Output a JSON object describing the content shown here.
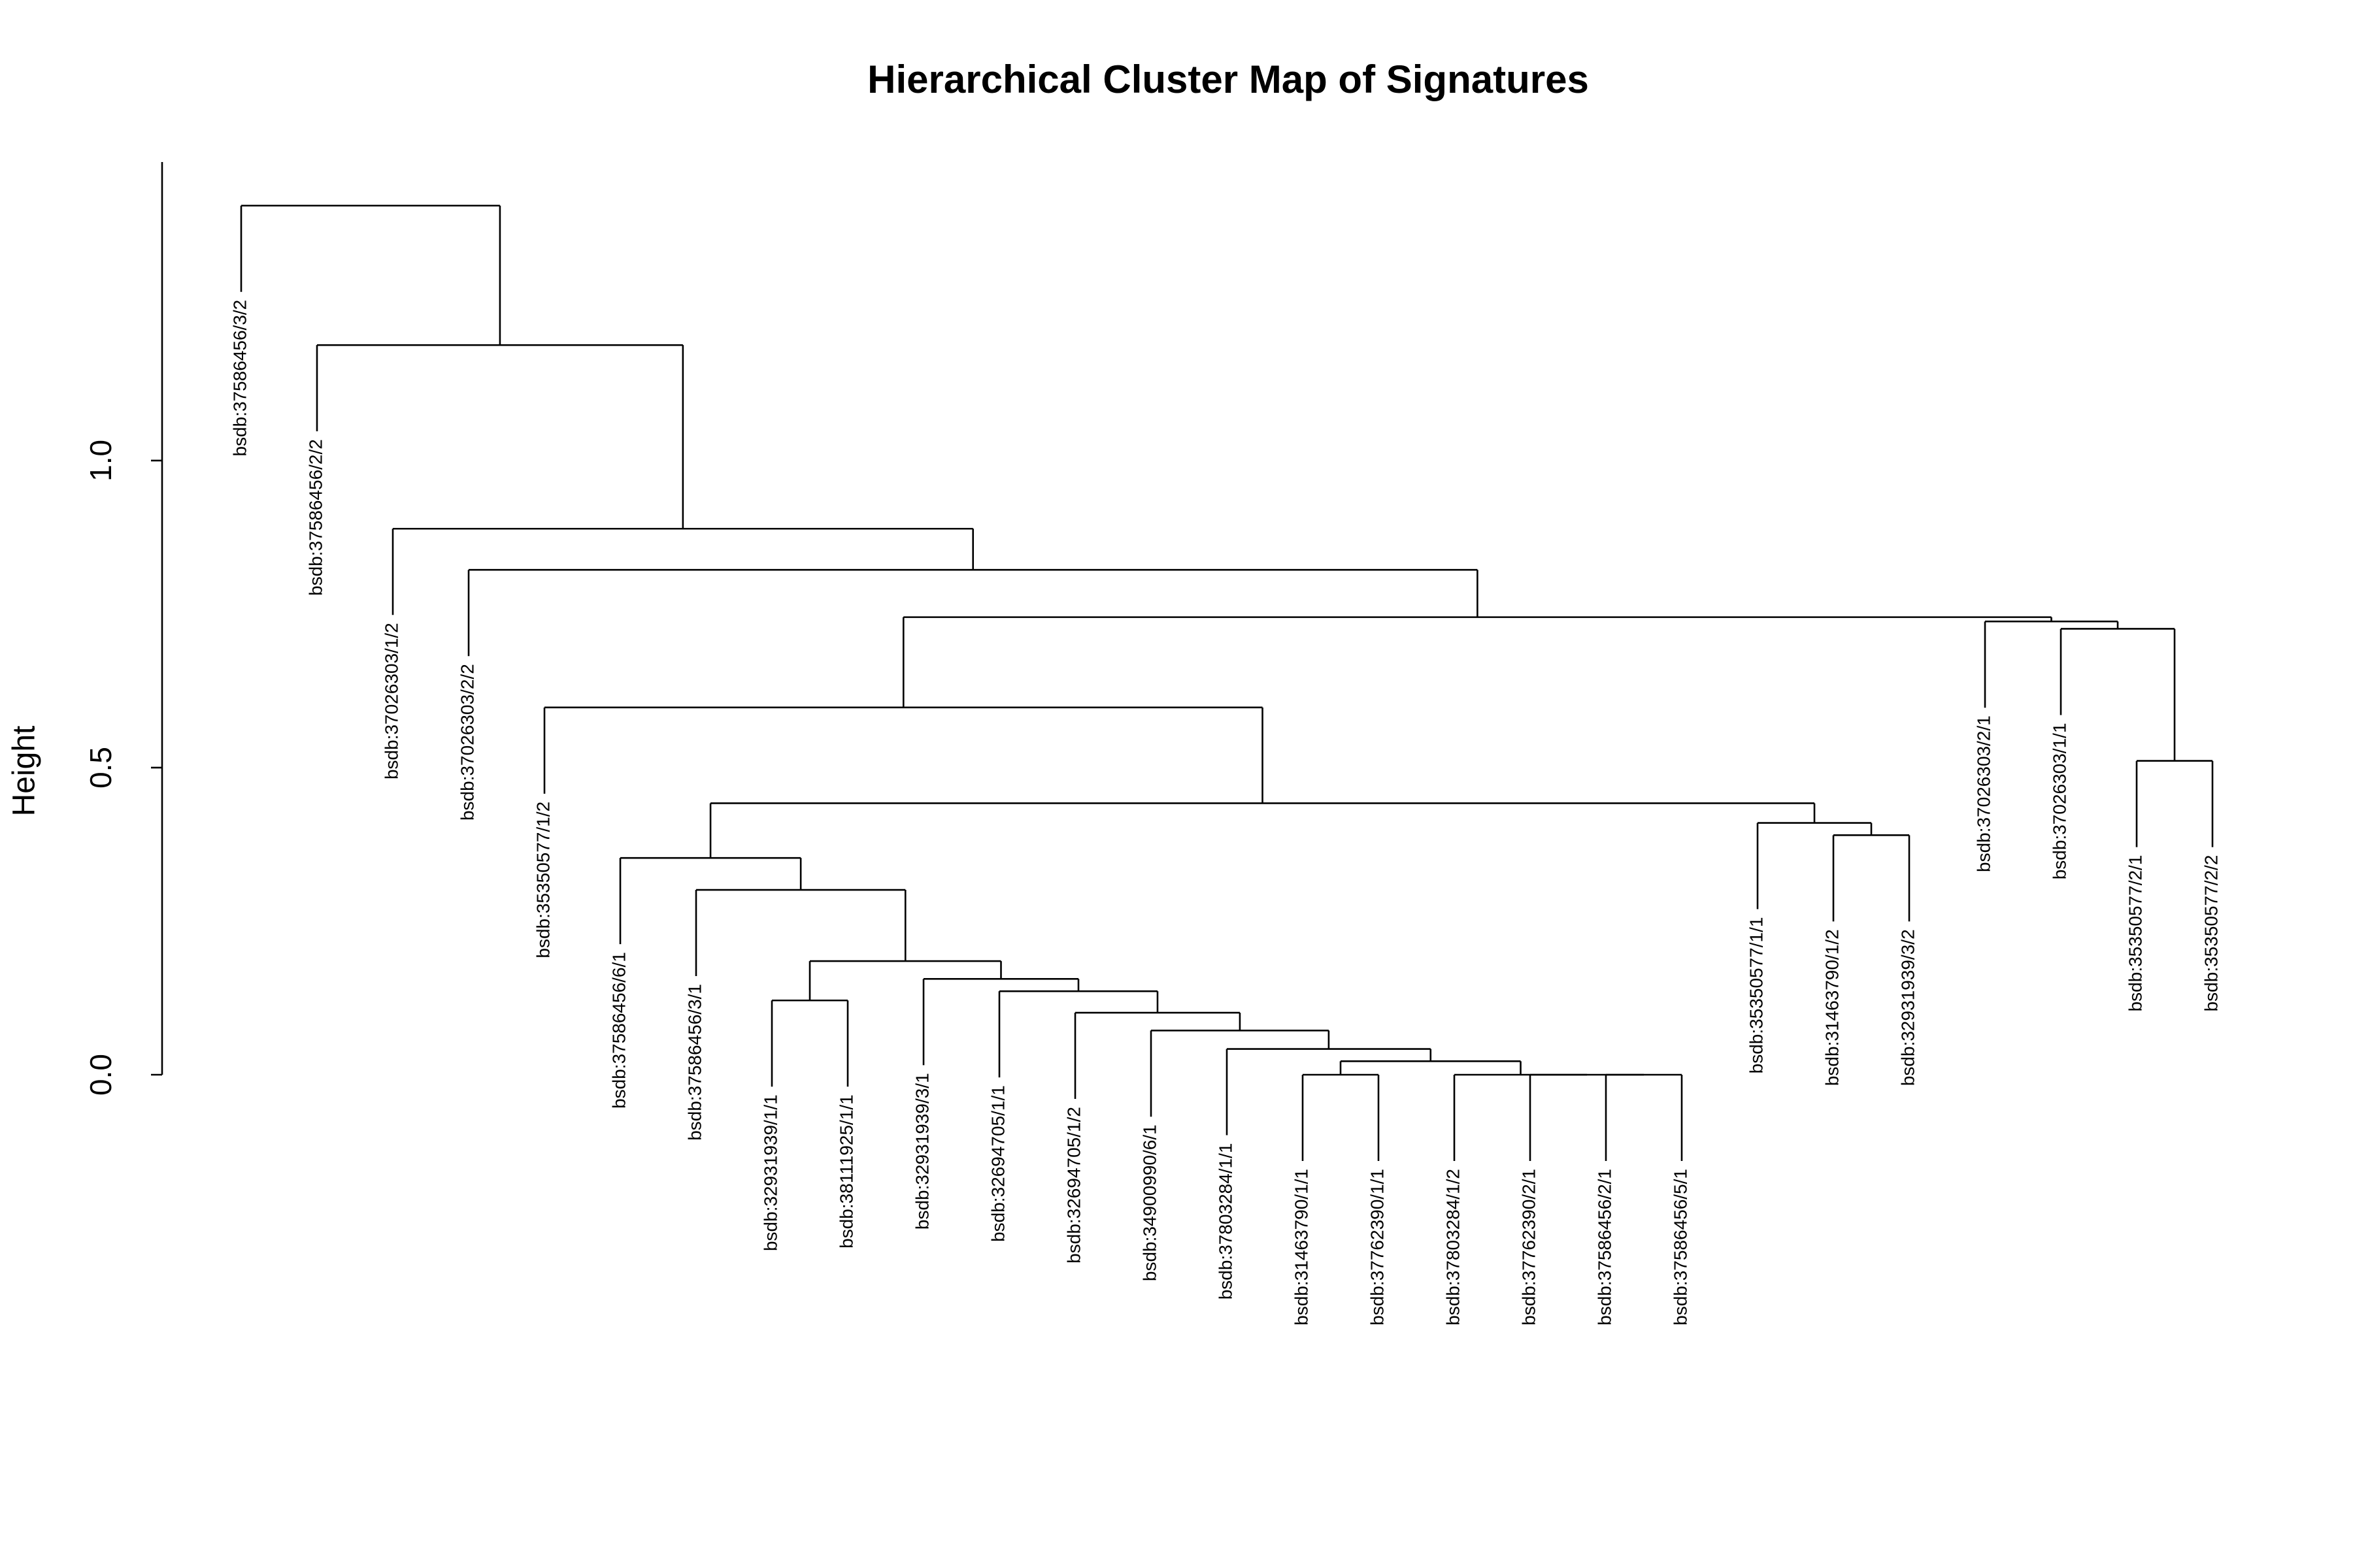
{
  "chart_data": {
    "type": "dendrogram",
    "title": "Hierarchical Cluster Map of Signatures",
    "ylabel": "Height",
    "ylim": [
      0,
      1.486
    ],
    "yticks": [
      {
        "value": 0,
        "label": "0.0"
      },
      0.5,
      {
        "value": 1,
        "label": "1.0"
      }
    ],
    "color": "#000000",
    "tree": {
      "height": 1.415,
      "children": [
        {
          "label": "bsdb:37586456/3/2"
        },
        {
          "height": 1.188,
          "children": [
            {
              "label": "bsdb:37586456/2/2"
            },
            {
              "height": 0.889,
              "children": [
                {
                  "label": "bsdb:37026303/1/2"
                },
                {
                  "height": 0.822,
                  "children": [
                    {
                      "label": "bsdb:37026303/2/2"
                    },
                    {
                      "height": 0.745,
                      "children": [
                        {
                          "height": 0.598,
                          "children": [
                            {
                              "label": "bsdb:35350577/1/2"
                            },
                            {
                              "height": 0.442,
                              "children": [
                                {
                                  "height": 0.353,
                                  "children": [
                                    {
                                      "label": "bsdb:37586456/6/1"
                                    },
                                    {
                                      "height": 0.301,
                                      "children": [
                                        {
                                          "label": "bsdb:37586456/3/1"
                                        },
                                        {
                                          "height": 0.185,
                                          "children": [
                                            {
                                              "height": 0.121,
                                              "children": [
                                                {
                                                  "label": "bsdb:32931939/1/1"
                                                },
                                                {
                                                  "label": "bsdb:38111925/1/1"
                                                }
                                              ]
                                            },
                                            {
                                              "height": 0.156,
                                              "children": [
                                                {
                                                  "label": "bsdb:32931939/3/1"
                                                },
                                                {
                                                  "height": 0.136,
                                                  "children": [
                                                    {
                                                      "label": "bsdb:32694705/1/1"
                                                    },
                                                    {
                                                      "height": 0.101,
                                                      "children": [
                                                        {
                                                          "label": "bsdb:32694705/1/2"
                                                        },
                                                        {
                                                          "height": 0.072,
                                                          "children": [
                                                            {
                                                              "label": "bsdb:34900990/6/1"
                                                            },
                                                            {
                                                              "height": 0.042,
                                                              "children": [
                                                                {
                                                                  "label": "bsdb:37803284/1/1"
                                                                },
                                                                {
                                                                  "height": 0.022,
                                                                  "children": [
                                                                    {
                                                                      "height": 0,
                                                                      "children": [
                                                                        {
                                                                          "label": "bsdb:31463790/1/1"
                                                                        },
                                                                        {
                                                                          "label": "bsdb:37762390/1/1"
                                                                        }
                                                                      ]
                                                                    },
                                                                    {
                                                                      "height": 0,
                                                                      "children": [
                                                                        {
                                                                          "label": "bsdb:37803284/1/2"
                                                                        },
                                                                        {
                                                                          "height": 0,
                                                                          "children": [
                                                                            {
                                                                              "label": "bsdb:37762390/2/1"
                                                                            },
                                                                            {
                                                                              "height": 0,
                                                                              "children": [
                                                                                {
                                                                                  "label": "bsdb:37586456/2/1"
                                                                                },
                                                                                {
                                                                                  "label": "bsdb:37586456/5/1"
                                                                                }
                                                                              ]
                                                                            }
                                                                          ]
                                                                        }
                                                                      ]
                                                                    }
                                                                  ]
                                                                }
                                                              ]
                                                            }
                                                          ]
                                                        }
                                                      ]
                                                    }
                                                  ]
                                                }
                                              ]
                                            }
                                          ]
                                        }
                                      ]
                                    }
                                  ]
                                },
                                {
                                  "height": 0.41,
                                  "children": [
                                    {
                                      "label": "bsdb:35350577/1/1"
                                    },
                                    {
                                      "height": 0.39,
                                      "children": [
                                        {
                                          "label": "bsdb:31463790/1/2"
                                        },
                                        {
                                          "label": "bsdb:32931939/3/2"
                                        }
                                      ]
                                    }
                                  ]
                                }
                              ]
                            }
                          ]
                        },
                        {
                          "height": 0.738,
                          "children": [
                            {
                              "label": "bsdb:37026303/2/1"
                            },
                            {
                              "height": 0.726,
                              "children": [
                                {
                                  "label": "bsdb:37026303/1/1"
                                },
                                {
                                  "height": 0.511,
                                  "children": [
                                    {
                                      "label": "bsdb:35350577/2/1"
                                    },
                                    {
                                      "label": "bsdb:35350577/2/2"
                                    }
                                  ]
                                }
                              ]
                            }
                          ]
                        }
                      ]
                    }
                  ]
                }
              ]
            }
          ]
        }
      ]
    }
  }
}
